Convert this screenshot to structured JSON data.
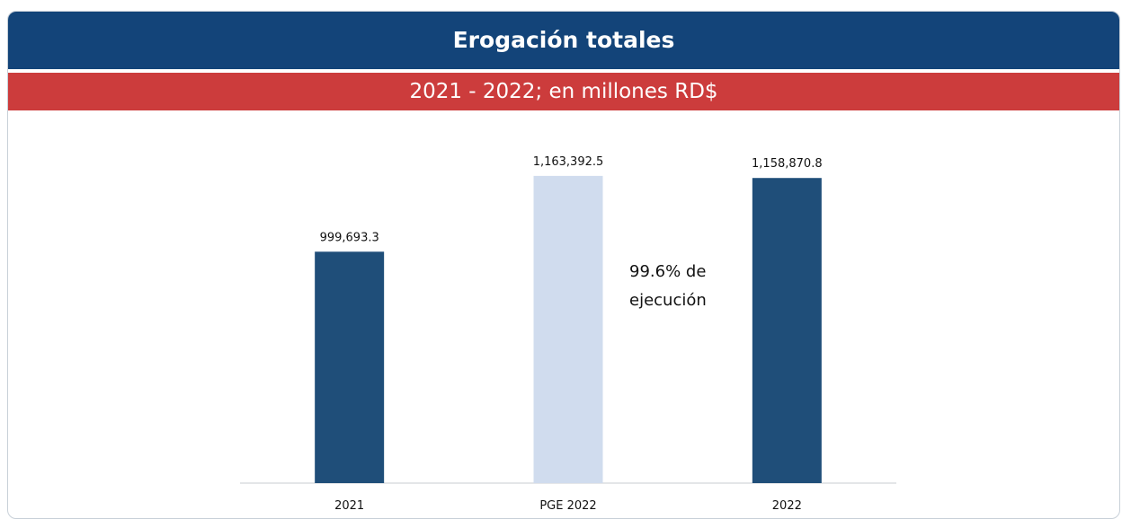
{
  "chart_data": {
    "type": "bar",
    "title": "Erogación totales",
    "subtitle": "2021 - 2022; en millones RD$",
    "categories": [
      "2021",
      "PGE 2022",
      "2022"
    ],
    "values": [
      999693.3,
      1163392.5,
      1158870.8
    ],
    "value_labels": [
      "999,693.3",
      "1,163,392.5",
      "1,158,870.8"
    ],
    "colors": [
      "#1f4e79",
      "#d0dcee",
      "#1f4e79"
    ],
    "ylim": [
      500000,
      1200000
    ],
    "annotation": "99.6% de ejecución"
  }
}
